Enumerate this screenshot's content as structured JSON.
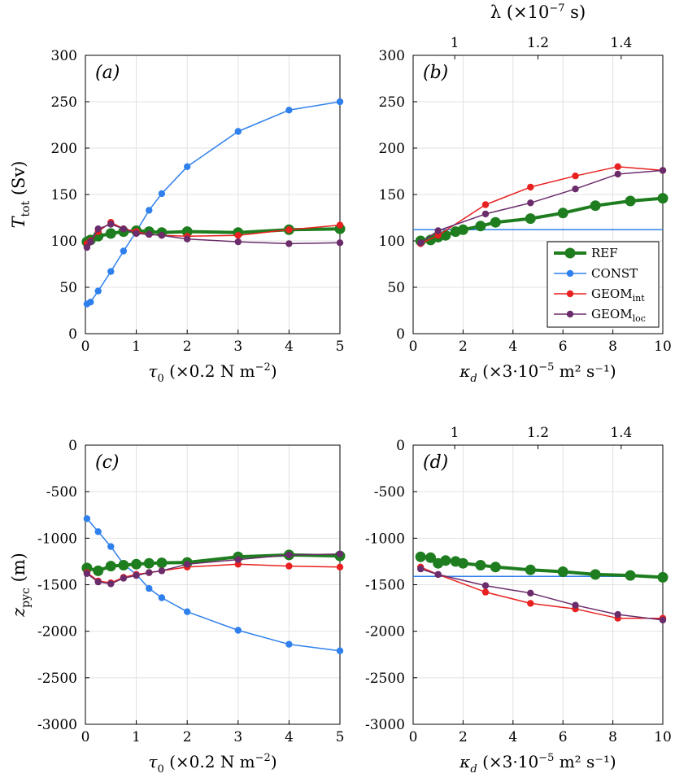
{
  "chart_data": [
    {
      "panel": "(a)",
      "type": "line",
      "xlabel_pre": "τ",
      "xlabel_sub": "0",
      "xlabel_post": " (×0.2 N m",
      "xlabel_sup": "−2",
      "xlabel_end": ")",
      "ylabel_pre": "T",
      "ylabel_sub": "tot",
      "ylabel_post": " (Sv)",
      "xlim": [
        0,
        5
      ],
      "ylim": [
        0,
        300
      ],
      "xticks": [
        "0",
        "1",
        "2",
        "3",
        "4",
        "5"
      ],
      "yticks": [
        "0",
        "50",
        "100",
        "150",
        "200",
        "250",
        "300"
      ],
      "series": [
        {
          "name": "REF",
          "x": [
            0.03,
            0.1,
            0.25,
            0.5,
            0.75,
            1,
            1.25,
            1.5,
            2,
            3,
            4,
            5
          ],
          "y": [
            99,
            101,
            105,
            108,
            110,
            111,
            110,
            109,
            110,
            109,
            112,
            113
          ]
        },
        {
          "name": "CONST",
          "x": [
            0.03,
            0.1,
            0.25,
            0.5,
            0.75,
            1,
            1.25,
            1.5,
            2,
            3,
            4,
            5
          ],
          "y": [
            32,
            34,
            46,
            67,
            89,
            110,
            133,
            151,
            180,
            218,
            241,
            250
          ]
        },
        {
          "name": "GEOM_int",
          "x": [
            0.03,
            0.1,
            0.25,
            0.5,
            0.75,
            1,
            1.25,
            1.5,
            2,
            3,
            4,
            5
          ],
          "y": [
            97,
            100,
            110,
            120,
            113,
            110,
            107,
            106,
            105,
            106,
            112,
            117
          ]
        },
        {
          "name": "GEOM_loc",
          "x": [
            0.03,
            0.1,
            0.25,
            0.5,
            0.75,
            1,
            1.25,
            1.5,
            2,
            3,
            4,
            5
          ],
          "y": [
            93,
            99,
            113,
            118,
            113,
            108,
            107,
            106,
            102,
            99,
            97,
            98
          ]
        }
      ]
    },
    {
      "panel": "(b)",
      "type": "line",
      "xlabel_pre": "κ",
      "xlabel_sub": "d",
      "xlabel_post": " (×3·10",
      "xlabel_sup": "−5",
      "xlabel_end": " m² s⁻¹)",
      "top_xlabel_pre": "λ (×10",
      "top_xlabel_sup": "−7",
      "top_xlabel_end": " s)",
      "xlim": [
        0,
        10
      ],
      "ylim": [
        0,
        300
      ],
      "xticks": [
        "0",
        "2",
        "4",
        "6",
        "8",
        "10"
      ],
      "yticks": [
        "0",
        "50",
        "100",
        "150",
        "200",
        "250",
        "300"
      ],
      "top_xticks": [
        "1",
        "1.2",
        "1.4"
      ],
      "top_xtick_values": [
        1.0,
        1.2,
        1.4
      ],
      "top_xlim": [
        0.9,
        1.5
      ],
      "legend": [
        "REF",
        "CONST",
        "GEOM",
        "GEOM"
      ],
      "legend_subs": [
        "",
        "",
        "int",
        "loc"
      ],
      "series": [
        {
          "name": "REF",
          "x": [
            0.3,
            0.7,
            1.0,
            1.3,
            1.7,
            2.0,
            2.7,
            3.3,
            4.7,
            6.0,
            7.3,
            8.7,
            10
          ],
          "y": [
            100,
            101,
            104,
            106,
            110,
            112,
            116,
            120,
            124,
            130,
            138,
            143,
            146
          ]
        },
        {
          "name": "CONST",
          "x": [
            0,
            10
          ],
          "y": [
            112,
            112
          ]
        },
        {
          "name": "GEOM_int",
          "x": [
            0.3,
            1.0,
            2.9,
            4.7,
            6.5,
            8.2,
            10
          ],
          "y": [
            97,
            106,
            139,
            158,
            170,
            180,
            176
          ]
        },
        {
          "name": "GEOM_loc",
          "x": [
            0.3,
            1.0,
            2.9,
            4.7,
            6.5,
            8.2,
            10
          ],
          "y": [
            98,
            111,
            129,
            141,
            156,
            172,
            176
          ]
        }
      ]
    },
    {
      "panel": "(c)",
      "type": "line",
      "xlabel_pre": "τ",
      "xlabel_sub": "0",
      "xlabel_post": " (×0.2 N m",
      "xlabel_sup": "−2",
      "xlabel_end": ")",
      "ylabel_pre": "z",
      "ylabel_sub": "pyc",
      "ylabel_post": " (m)",
      "xlim": [
        0,
        5
      ],
      "ylim": [
        -3000,
        0
      ],
      "xticks": [
        "0",
        "1",
        "2",
        "3",
        "4",
        "5"
      ],
      "yticks": [
        "-3000",
        "-2500",
        "-2000",
        "-1500",
        "-1000",
        "-500",
        "0"
      ],
      "series": [
        {
          "name": "REF",
          "x": [
            0.03,
            0.25,
            0.5,
            0.75,
            1,
            1.25,
            1.5,
            2,
            3,
            4,
            5
          ],
          "y": [
            -1320,
            -1350,
            -1300,
            -1290,
            -1280,
            -1270,
            -1265,
            -1260,
            -1200,
            -1180,
            -1190
          ]
        },
        {
          "name": "CONST",
          "x": [
            0.03,
            0.25,
            0.5,
            0.75,
            1,
            1.25,
            1.5,
            2,
            3,
            4,
            5
          ],
          "y": [
            -790,
            -930,
            -1090,
            -1280,
            -1390,
            -1540,
            -1640,
            -1790,
            -1990,
            -2140,
            -2210
          ]
        },
        {
          "name": "GEOM_int",
          "x": [
            0.03,
            0.25,
            0.5,
            0.75,
            1,
            1.25,
            1.5,
            2,
            3,
            4,
            5
          ],
          "y": [
            -1370,
            -1460,
            -1480,
            -1420,
            -1390,
            -1370,
            -1350,
            -1310,
            -1280,
            -1300,
            -1310
          ]
        },
        {
          "name": "GEOM_loc",
          "x": [
            0.03,
            0.25,
            0.5,
            0.75,
            1,
            1.25,
            1.5,
            2,
            3,
            4,
            5
          ],
          "y": [
            -1380,
            -1470,
            -1490,
            -1430,
            -1400,
            -1370,
            -1350,
            -1280,
            -1230,
            -1180,
            -1170
          ]
        }
      ]
    },
    {
      "panel": "(d)",
      "type": "line",
      "xlabel_pre": "κ",
      "xlabel_sub": "d",
      "xlabel_post": " (×3·10",
      "xlabel_sup": "−5",
      "xlabel_end": " m² s⁻¹)",
      "xlim": [
        0,
        10
      ],
      "ylim": [
        -3000,
        0
      ],
      "xticks": [
        "0",
        "2",
        "4",
        "6",
        "8",
        "10"
      ],
      "yticks": [
        "-3000",
        "-2500",
        "-2000",
        "-1500",
        "-1000",
        "-500",
        "0"
      ],
      "top_xticks": [
        "1",
        "1.2",
        "1.4"
      ],
      "top_xtick_values": [
        1.0,
        1.2,
        1.4
      ],
      "top_xlim": [
        0.9,
        1.5
      ],
      "series": [
        {
          "name": "REF",
          "x": [
            0.3,
            0.7,
            1.0,
            1.3,
            1.7,
            2.0,
            2.7,
            3.3,
            4.7,
            6.0,
            7.3,
            8.7,
            10
          ],
          "y": [
            -1200,
            -1210,
            -1270,
            -1240,
            -1250,
            -1270,
            -1290,
            -1310,
            -1340,
            -1360,
            -1390,
            -1400,
            -1420
          ]
        },
        {
          "name": "CONST",
          "x": [
            0,
            10
          ],
          "y": [
            -1410,
            -1410
          ]
        },
        {
          "name": "GEOM_int",
          "x": [
            0.3,
            1.0,
            2.9,
            4.7,
            6.5,
            8.2,
            10
          ],
          "y": [
            -1310,
            -1390,
            -1580,
            -1700,
            -1760,
            -1860,
            -1860
          ]
        },
        {
          "name": "GEOM_loc",
          "x": [
            0.3,
            1.0,
            2.9,
            4.7,
            6.5,
            8.2,
            10
          ],
          "y": [
            -1330,
            -1390,
            -1510,
            -1590,
            -1720,
            -1820,
            -1880
          ]
        }
      ]
    }
  ],
  "styles": {
    "REF": {
      "color": "#1e7d1e"
    },
    "CONST": {
      "color": "#2f80ed"
    },
    "GEOM_int": {
      "color": "#e8201f"
    },
    "GEOM_loc": {
      "color": "#6b2c6b"
    }
  }
}
